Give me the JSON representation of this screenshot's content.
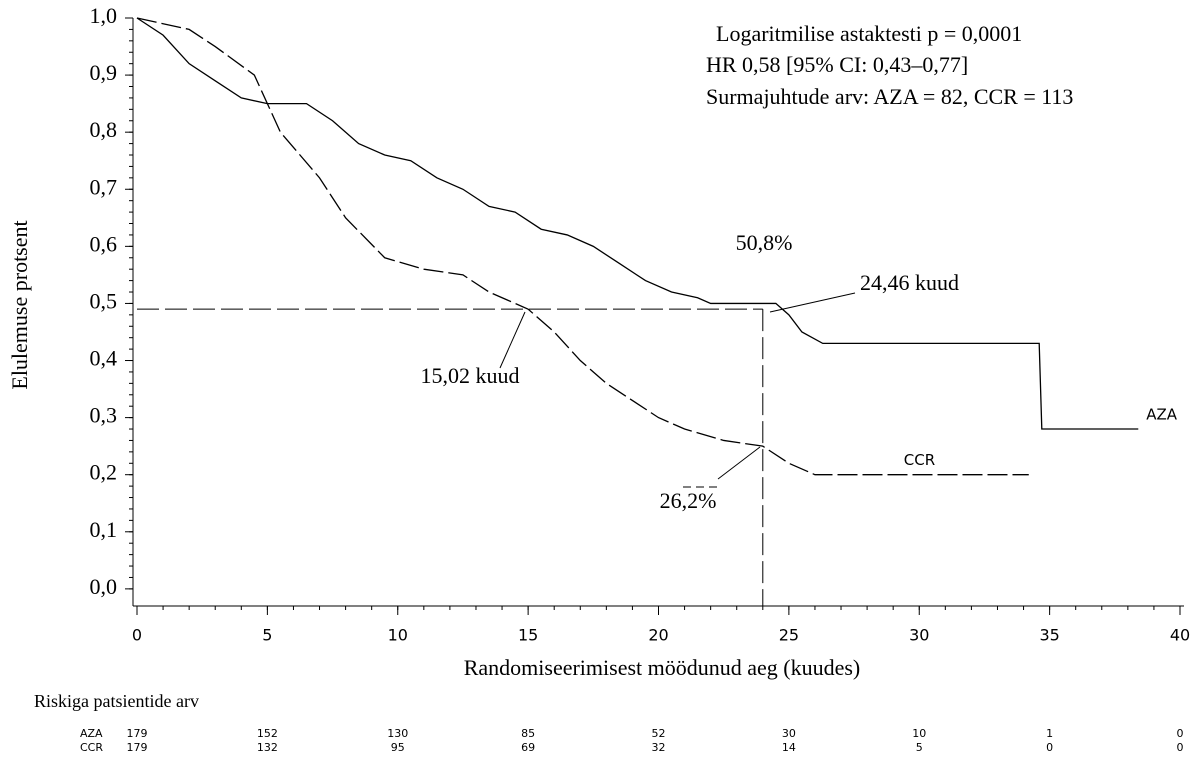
{
  "chart_data": {
    "type": "line",
    "step": true,
    "x_label": "Randomiseerimisest möödunud aeg (kuudes)",
    "y_label": "Elulemuse protsent",
    "xlim": [
      0,
      40
    ],
    "xticks": [
      0,
      5,
      10,
      15,
      20,
      25,
      30,
      35,
      40
    ],
    "ylim": [
      -0.03,
      1.0
    ],
    "yticks": [
      {
        "value": 0,
        "label": "0,0"
      },
      {
        "value": 0.1,
        "label": "0,1"
      },
      {
        "value": 0.2,
        "label": "0,2"
      },
      {
        "value": 0.3,
        "label": "0,3"
      },
      {
        "value": 0.4,
        "label": "0,4"
      },
      {
        "value": 0.5,
        "label": "0,5"
      },
      {
        "value": 0.6,
        "label": "0,6"
      },
      {
        "value": 0.7,
        "label": "0,7"
      },
      {
        "value": 0.8,
        "label": "0,8"
      },
      {
        "value": 0.9,
        "label": "0,9"
      },
      {
        "value": 1.0,
        "label": "1,0"
      }
    ],
    "series": [
      {
        "name": "AZA",
        "color": "#000000",
        "dash": false,
        "x": [
          0,
          1,
          2,
          3,
          4,
          5,
          6.5,
          7.5,
          8.5,
          9.5,
          10.5,
          11.5,
          12.5,
          13.5,
          14.5,
          15.5,
          16.5,
          17.5,
          18.5,
          19.5,
          20.5,
          21.5,
          22,
          24.5,
          25,
          25.5,
          26.3,
          34.6,
          34.7,
          38.4
        ],
        "values": [
          1.0,
          0.97,
          0.92,
          0.89,
          0.86,
          0.85,
          0.85,
          0.82,
          0.78,
          0.76,
          0.75,
          0.72,
          0.7,
          0.67,
          0.66,
          0.63,
          0.62,
          0.6,
          0.57,
          0.54,
          0.52,
          0.51,
          0.5,
          0.5,
          0.48,
          0.45,
          0.43,
          0.43,
          0.28,
          0.28
        ]
      },
      {
        "name": "CCR",
        "color": "#000000",
        "dash": true,
        "x": [
          0,
          1,
          2,
          3,
          4.5,
          5.5,
          7,
          8,
          9.5,
          11,
          12.5,
          13.5,
          15,
          16,
          17,
          18,
          20,
          21,
          22.5,
          24,
          25,
          26,
          34.2
        ],
        "values": [
          1.0,
          0.99,
          0.98,
          0.95,
          0.9,
          0.8,
          0.72,
          0.65,
          0.58,
          0.56,
          0.55,
          0.52,
          0.49,
          0.45,
          0.4,
          0.36,
          0.3,
          0.28,
          0.26,
          0.25,
          0.22,
          0.2,
          0.2
        ]
      }
    ],
    "reference_lines": {
      "y": 0.49,
      "x": 24
    },
    "stats": [
      "Logaritmilise astaktesti p = 0,0001",
      "HR 0,58 [95% CI: 0,43–0,77]",
      "Surmajuhtude arv: AZA = 82, CCR = 113"
    ],
    "annotations": [
      "50,8%",
      "24,46 kuud",
      "15,02 kuud",
      "26,2%"
    ],
    "risk_table": {
      "title": "Riskiga patsientide arv",
      "rows": [
        {
          "name": "AZA",
          "values": [
            179,
            152,
            130,
            85,
            52,
            30,
            10,
            1,
            0
          ]
        },
        {
          "name": "CCR",
          "values": [
            179,
            132,
            95,
            69,
            32,
            14,
            5,
            0,
            0
          ]
        }
      ]
    }
  }
}
